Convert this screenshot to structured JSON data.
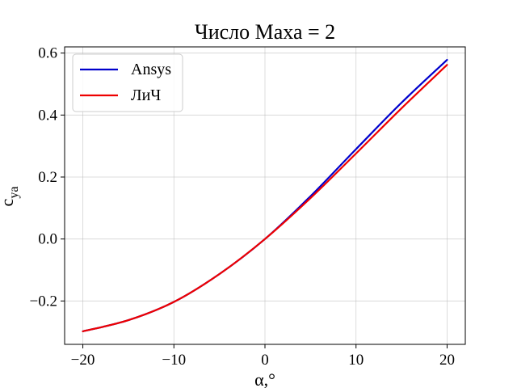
{
  "chart_data": {
    "type": "line",
    "title": "Число Маха = 2",
    "xlabel": "α,°",
    "ylabel_main": "c",
    "ylabel_sub": "ya",
    "xlim": [
      -22,
      22
    ],
    "ylim": [
      -0.34,
      0.62
    ],
    "xticks": [
      -20,
      -10,
      0,
      10,
      20
    ],
    "xtick_labels": [
      "−20",
      "−10",
      "0",
      "10",
      "20"
    ],
    "yticks": [
      -0.2,
      0.0,
      0.2,
      0.4,
      0.6
    ],
    "ytick_labels": [
      "−0.2",
      "0.0",
      "0.2",
      "0.4",
      "0.6"
    ],
    "grid": true,
    "legend_position": "upper-left",
    "series": [
      {
        "name": "Ansys",
        "color": "#0000cc",
        "x": [
          -20,
          -15,
          -10,
          -5,
          0,
          5,
          10,
          15,
          20
        ],
        "y": [
          -0.298,
          -0.262,
          -0.203,
          -0.113,
          0.0,
          0.138,
          0.29,
          0.44,
          0.578
        ]
      },
      {
        "name": "ЛиЧ",
        "color": "#ee0000",
        "x": [
          -20,
          -15,
          -10,
          -5,
          0,
          5,
          10,
          15,
          20
        ],
        "y": [
          -0.298,
          -0.262,
          -0.203,
          -0.113,
          0.0,
          0.132,
          0.276,
          0.422,
          0.562
        ]
      }
    ]
  }
}
